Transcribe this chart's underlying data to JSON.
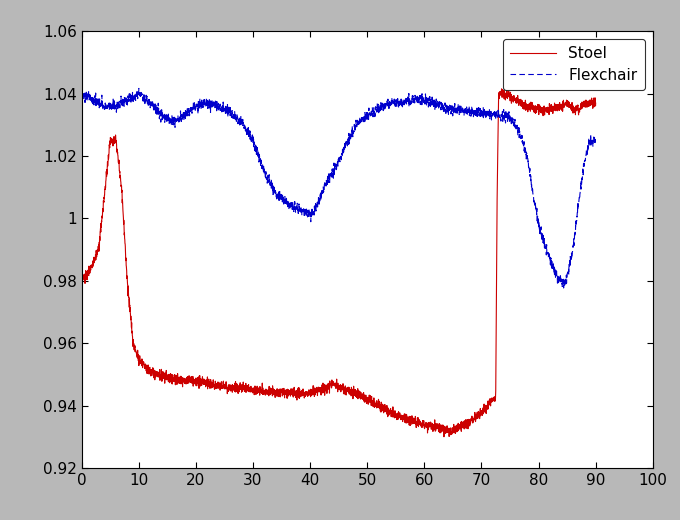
{
  "xlim": [
    0,
    100
  ],
  "ylim": [
    0.92,
    1.06
  ],
  "xticks": [
    0,
    10,
    20,
    30,
    40,
    50,
    60,
    70,
    80,
    90,
    100
  ],
  "yticks": [
    0.92,
    0.94,
    0.96,
    0.98,
    1.0,
    1.02,
    1.04,
    1.06
  ],
  "stoel_color": "#cc0000",
  "flexchair_color": "#0000cc",
  "background_color": "#b8b8b8",
  "axes_background": "#ffffff",
  "legend_labels": [
    "Stoel",
    "Flexchair"
  ],
  "font_size": 11,
  "figure_width": 6.8,
  "figure_height": 5.2
}
